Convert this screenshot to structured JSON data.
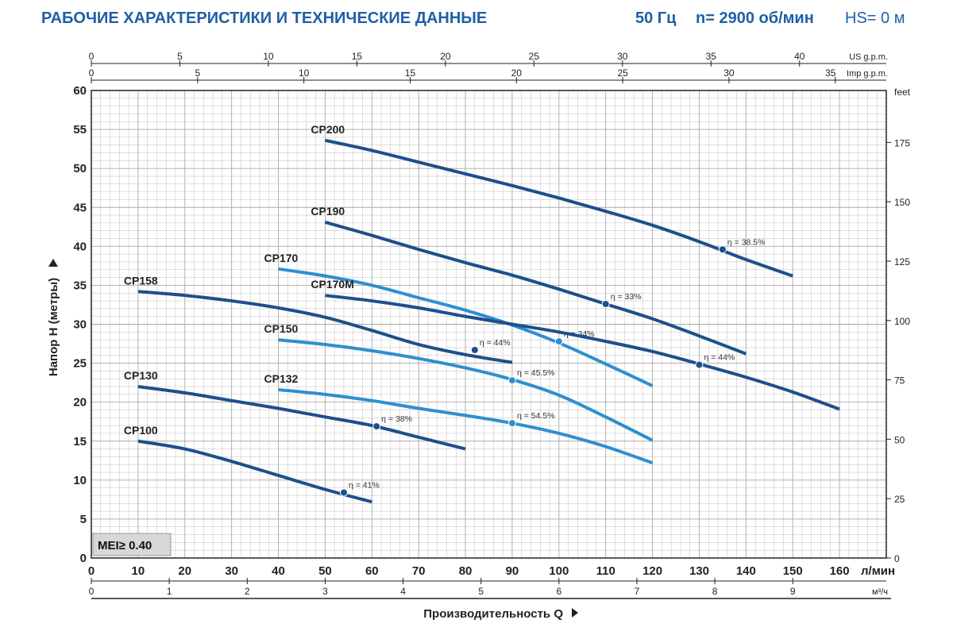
{
  "header": {
    "title": "РАБОЧИЕ ХАРАКТЕРИСТИКИ И ТЕХНИЧЕСКИЕ ДАННЫЕ",
    "frequency": "50 Гц",
    "speed": "n= 2900 об/мин",
    "hs": "HS= 0 м"
  },
  "colors": {
    "dark_curve": "#1d4f8c",
    "light_curve": "#2f8fd0",
    "header_text": "#1f5fa6",
    "grid": "#bfbfbf"
  },
  "chart_data": {
    "type": "line",
    "xlabel": "Производительность Q",
    "ylabel": "Напор Н (метры)",
    "badge": "MEI≥ 0.40",
    "axes": {
      "x_lpm": {
        "range": [
          0,
          170
        ],
        "ticks": [
          0,
          10,
          20,
          30,
          40,
          50,
          60,
          70,
          80,
          90,
          100,
          110,
          120,
          130,
          140,
          150,
          160
        ],
        "unit": "л/мин"
      },
      "x_m3h": {
        "range": [
          0,
          10.2
        ],
        "ticks": [
          0,
          1,
          2,
          3,
          4,
          5,
          6,
          7,
          8,
          9
        ],
        "unit": "м³/ч"
      },
      "x_usgpm": {
        "range": [
          0,
          44.9
        ],
        "ticks": [
          0,
          5,
          10,
          15,
          20,
          25,
          30,
          35,
          40
        ],
        "unit": "US g.p.m."
      },
      "x_impgpm": {
        "range": [
          0,
          37.4
        ],
        "ticks": [
          0,
          5,
          10,
          15,
          20,
          25,
          30,
          35
        ],
        "unit": "Imp g.p.m."
      },
      "y_m": {
        "range": [
          0,
          60
        ],
        "ticks": [
          0,
          5,
          10,
          15,
          20,
          25,
          30,
          35,
          40,
          45,
          50,
          55,
          60
        ]
      },
      "y_ft": {
        "range": [
          0,
          196.85
        ],
        "ticks": [
          0,
          25,
          50,
          75,
          100,
          125,
          150,
          175
        ],
        "unit": "feet"
      }
    },
    "grid": true,
    "series": [
      {
        "name": "CP200",
        "color": "dark",
        "x": [
          50,
          60,
          70,
          80,
          90,
          100,
          110,
          120,
          130,
          140,
          150
        ],
        "y": [
          53.6,
          52.3,
          50.8,
          49.3,
          47.8,
          46.2,
          44.5,
          42.7,
          40.6,
          38.3,
          36.2
        ],
        "eff": {
          "x": 135,
          "y": 39.6,
          "label": "η = 38.5%"
        }
      },
      {
        "name": "CP190",
        "color": "dark",
        "x": [
          50,
          60,
          70,
          80,
          90,
          100,
          110,
          120,
          130,
          140
        ],
        "y": [
          43.1,
          41.4,
          39.6,
          37.9,
          36.3,
          34.5,
          32.6,
          30.7,
          28.5,
          26.2
        ],
        "eff": {
          "x": 110,
          "y": 32.6,
          "label": "η = 33%"
        }
      },
      {
        "name": "CP170",
        "color": "light",
        "x": [
          40,
          50,
          60,
          70,
          80,
          90,
          100,
          110,
          120
        ],
        "y": [
          37.1,
          36.2,
          35.0,
          33.4,
          31.8,
          29.9,
          27.6,
          24.9,
          22.1
        ],
        "eff": {
          "x": 100,
          "y": 27.8,
          "label": "η = 34%"
        }
      },
      {
        "name": "CP170M",
        "color": "dark",
        "x": [
          50,
          60,
          70,
          80,
          90,
          100,
          110,
          120,
          130,
          140,
          150,
          160
        ],
        "y": [
          33.7,
          33.0,
          32.1,
          31.0,
          30.0,
          29.0,
          27.8,
          26.5,
          24.9,
          23.2,
          21.3,
          19.1
        ],
        "eff": {
          "x": 130,
          "y": 24.8,
          "label": "η = 44%"
        }
      },
      {
        "name": "CP158",
        "color": "dark",
        "x": [
          10,
          20,
          30,
          40,
          50,
          60,
          70,
          80,
          90
        ],
        "y": [
          34.2,
          33.7,
          33.0,
          32.1,
          30.9,
          29.2,
          27.4,
          26.1,
          25.1
        ],
        "eff": {
          "x": 82,
          "y": 26.7,
          "label": "η = 44%"
        }
      },
      {
        "name": "CP150",
        "color": "light",
        "x": [
          40,
          50,
          60,
          70,
          80,
          90,
          100,
          110,
          120
        ],
        "y": [
          28.0,
          27.4,
          26.6,
          25.6,
          24.4,
          22.9,
          20.9,
          18.1,
          15.1
        ],
        "eff": {
          "x": 90,
          "y": 22.8,
          "label": "η = 45.5%"
        }
      },
      {
        "name": "CP132",
        "color": "light",
        "x": [
          40,
          50,
          60,
          70,
          80,
          90,
          100,
          110,
          120
        ],
        "y": [
          21.6,
          21.0,
          20.2,
          19.2,
          18.3,
          17.3,
          16.0,
          14.3,
          12.2
        ],
        "eff": {
          "x": 90,
          "y": 17.3,
          "label": "η = 54.5%"
        }
      },
      {
        "name": "CP130",
        "color": "dark",
        "x": [
          10,
          20,
          30,
          40,
          50,
          60,
          70,
          80
        ],
        "y": [
          22.0,
          21.2,
          20.2,
          19.2,
          18.1,
          17.0,
          15.5,
          14.0
        ],
        "eff": {
          "x": 61,
          "y": 16.9,
          "label": "η = 38%"
        }
      },
      {
        "name": "CP100",
        "color": "dark",
        "x": [
          10,
          20,
          30,
          40,
          50,
          60
        ],
        "y": [
          15.0,
          14.0,
          12.4,
          10.6,
          8.8,
          7.2
        ],
        "eff": {
          "x": 54,
          "y": 8.4,
          "label": "η = 41%"
        }
      }
    ]
  }
}
